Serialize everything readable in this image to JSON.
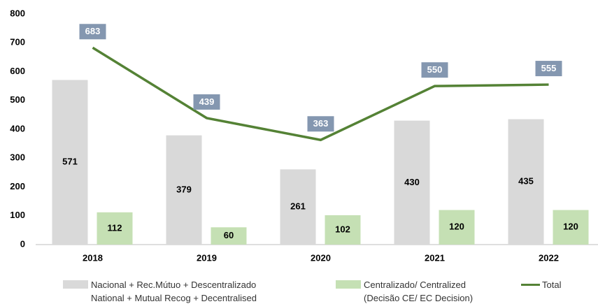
{
  "chart_data": {
    "type": "bar",
    "categories": [
      "2018",
      "2019",
      "2020",
      "2021",
      "2022"
    ],
    "series": [
      {
        "name": "Nacional +  Rec.Mútuo + Descentralizado\nNational + Mutual Recog + Decentralised",
        "type": "bar",
        "color": "#d9d9d9",
        "values": [
          571,
          379,
          261,
          430,
          435
        ]
      },
      {
        "name": "Centralizado/ Centralized\n(Decisão CE/ EC Decision)",
        "type": "bar",
        "color": "#c5e0b4",
        "values": [
          112,
          60,
          102,
          120,
          120
        ]
      },
      {
        "name": "Total",
        "type": "line",
        "color": "#548235",
        "label_color": "#8497b0",
        "values": [
          683,
          439,
          363,
          550,
          555
        ]
      }
    ],
    "ylim": [
      0,
      800
    ],
    "yticks": [
      0,
      100,
      200,
      300,
      400,
      500,
      600,
      700,
      800
    ],
    "grid": false,
    "legend": "bottom"
  }
}
